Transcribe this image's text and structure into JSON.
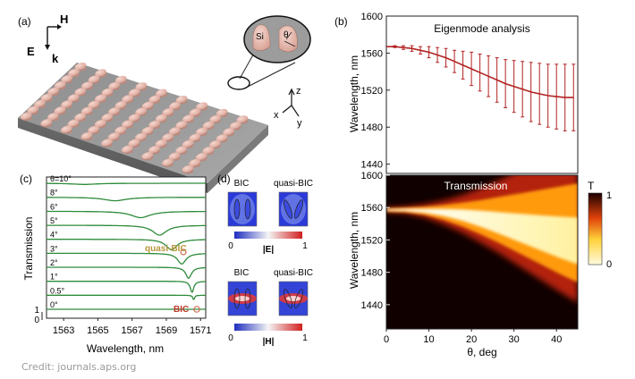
{
  "panel_labels": {
    "a": "(a)",
    "b": "(b)",
    "c": "(c)",
    "d": "(d)"
  },
  "panel_a": {
    "axis_H": "H",
    "axis_E": "E",
    "axis_k": "k",
    "coord_z": "z",
    "coord_x": "x",
    "coord_y": "y",
    "inset_si": "Si",
    "inset_theta": "θ"
  },
  "credit": "Credit: journals.aps.org",
  "colors": {
    "resonance_line": "#b22222",
    "curve_green": "#2e8b3a",
    "bic_marker": "#d06a50",
    "quasi_label": "#b8963a",
    "bic_label": "#c0392b"
  },
  "chart_data": [
    {
      "id": "b_eigenmode",
      "type": "line",
      "title": "Eigenmode analysis",
      "xlabel": "",
      "ylabel": "Wavelength, nm",
      "xlim": [
        0,
        45
      ],
      "ylim": [
        1430,
        1600
      ],
      "yticks": [
        1440,
        1480,
        1520,
        1560,
        1600
      ],
      "x": [
        0,
        2,
        4,
        6,
        8,
        10,
        12,
        14,
        16,
        18,
        20,
        22,
        24,
        26,
        28,
        30,
        32,
        34,
        36,
        38,
        40,
        42,
        44
      ],
      "series": [
        {
          "name": "resonance",
          "values": [
            1567,
            1567,
            1566,
            1565,
            1563,
            1561,
            1558,
            1555,
            1551,
            1547,
            1543,
            1539,
            1535,
            1531,
            1527,
            1524,
            1521,
            1518,
            1516,
            1514,
            1513,
            1512,
            1512
          ]
        }
      ],
      "errorbars": [
        0,
        1,
        2,
        3,
        4,
        6,
        8,
        10,
        12,
        15,
        18,
        20,
        22,
        24,
        26,
        28,
        30,
        32,
        33,
        34,
        35,
        36,
        36
      ]
    },
    {
      "id": "b_transmission",
      "type": "heatmap",
      "title": "Transmission",
      "xlabel": "θ, deg",
      "ylabel": "Wavelength, nm",
      "xlim": [
        0,
        45
      ],
      "ylim": [
        1410,
        1600
      ],
      "xticks": [
        0,
        10,
        20,
        30,
        40
      ],
      "yticks": [
        1440,
        1480,
        1520,
        1560,
        1600
      ],
      "colorbar": {
        "label": "T",
        "ticks": [
          0,
          1
        ]
      },
      "band_center_nm": [
        1557,
        1557,
        1556,
        1554,
        1550,
        1544,
        1537,
        1530,
        1523,
        1516,
        1510
      ],
      "band_upper_nm": [
        1559,
        1560,
        1562,
        1565,
        1569,
        1574,
        1580,
        1586,
        1592,
        1598,
        1604
      ],
      "band_lower_nm": [
        1555,
        1554,
        1550,
        1543,
        1534,
        1523,
        1511,
        1498,
        1485,
        1472,
        1460
      ],
      "band_x_deg": [
        0,
        4.5,
        9,
        13.5,
        18,
        22.5,
        27,
        31.5,
        36,
        40.5,
        45
      ]
    },
    {
      "id": "c_spectra",
      "type": "line",
      "xlabel": "Wavelength, nm",
      "ylabel": "Transmission",
      "xlim": [
        1562,
        1571.3
      ],
      "xticks": [
        1563,
        1565,
        1567,
        1569,
        1571
      ],
      "ytick_labels": [
        "0",
        "1"
      ],
      "curves": [
        {
          "label": "θ=10°",
          "center": 1564.2,
          "depth": 0.1,
          "width": 0.9
        },
        {
          "label": "8°",
          "center": 1566.0,
          "depth": 0.3,
          "width": 0.8
        },
        {
          "label": "6°",
          "center": 1567.5,
          "depth": 0.55,
          "width": 0.7
        },
        {
          "label": "5°",
          "center": 1568.6,
          "depth": 0.85,
          "width": 0.5
        },
        {
          "label": "4°",
          "center": 1569.3,
          "depth": 0.9,
          "width": 0.4
        },
        {
          "label": "3°",
          "center": 1569.9,
          "depth": 0.92,
          "width": 0.3
        },
        {
          "label": "2°",
          "center": 1570.3,
          "depth": 0.95,
          "width": 0.2
        },
        {
          "label": "1°",
          "center": 1570.5,
          "depth": 0.97,
          "width": 0.12
        },
        {
          "label": "0.5°",
          "center": 1570.6,
          "depth": 0.4,
          "width": 0.06
        },
        {
          "label": "0°",
          "center": 1570.7,
          "depth": 0.0,
          "width": 0.05
        }
      ],
      "annotations": [
        {
          "text": "quasi-BIC"
        },
        {
          "text": "BIC"
        }
      ]
    }
  ],
  "panel_d": {
    "bic": "BIC",
    "quasi_bic": "quasi-BIC",
    "e_label": "|E|",
    "h_label": "|H|",
    "scale_min": "0",
    "scale_max": "1"
  }
}
